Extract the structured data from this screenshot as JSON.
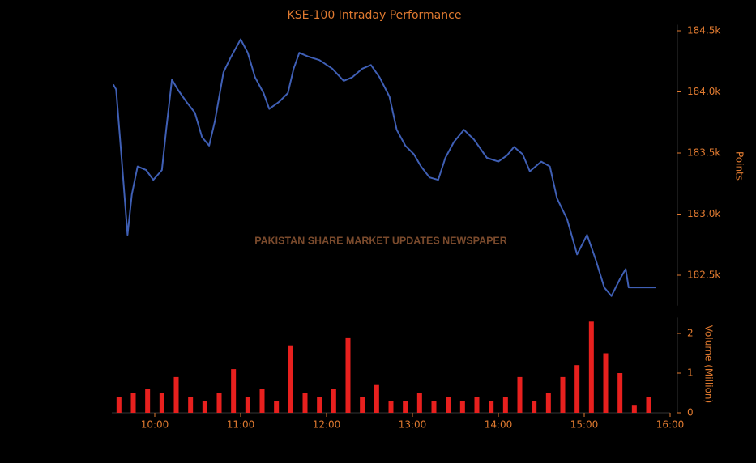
{
  "chart_data": [
    {
      "type": "line",
      "title": "KSE-100 Intraday Performance",
      "y_label": "Points",
      "annotation": "PAKISTAN SHARE MARKET UPDATES NEWSPAPER",
      "axis_side": "right",
      "xlim": [
        "09:30",
        "16:00"
      ],
      "ylim": [
        182250,
        184550
      ],
      "yticks": [
        {
          "value": 182500,
          "label": "182.5k"
        },
        {
          "value": 183000,
          "label": "183.0k"
        },
        {
          "value": 183500,
          "label": "183.5k"
        },
        {
          "value": 184000,
          "label": "184.0k"
        },
        {
          "value": 184500,
          "label": "184.5k"
        }
      ],
      "series": [
        {
          "name": "KSE-100",
          "color": "#3f5fb5",
          "x": [
            "09:31",
            "09:33",
            "09:37",
            "09:41",
            "09:44",
            "09:48",
            "09:54",
            "09:59",
            "10:05",
            "10:08",
            "10:12",
            "10:16",
            "10:22",
            "10:28",
            "10:33",
            "10:38",
            "10:42",
            "10:48",
            "10:53",
            "11:00",
            "11:05",
            "11:10",
            "11:16",
            "11:20",
            "11:27",
            "11:33",
            "11:37",
            "11:41",
            "11:47",
            "11:55",
            "12:04",
            "12:12",
            "12:18",
            "12:25",
            "12:31",
            "12:37",
            "12:44",
            "12:49",
            "12:55",
            "13:01",
            "13:06",
            "13:12",
            "13:18",
            "13:23",
            "13:29",
            "13:36",
            "13:43",
            "13:52",
            "14:00",
            "14:06",
            "14:11",
            "14:17",
            "14:22",
            "14:30",
            "14:36",
            "14:41",
            "14:48",
            "14:55",
            "15:02",
            "15:08",
            "15:14",
            "15:19",
            "15:25",
            "15:29",
            "15:31",
            "15:50"
          ],
          "values": [
            184060,
            184020,
            183430,
            182830,
            183160,
            183390,
            183360,
            183280,
            183360,
            183690,
            184100,
            184020,
            183920,
            183830,
            183630,
            183560,
            183760,
            184160,
            184280,
            184430,
            184320,
            184120,
            183990,
            183860,
            183920,
            183990,
            184190,
            184320,
            184290,
            184260,
            184190,
            184090,
            184120,
            184190,
            184220,
            184120,
            183960,
            183690,
            183560,
            183490,
            183390,
            183300,
            183280,
            183460,
            183590,
            183690,
            183610,
            183460,
            183430,
            183480,
            183550,
            183490,
            183350,
            183430,
            183390,
            183130,
            182960,
            182670,
            182830,
            182630,
            182400,
            182330,
            182470,
            182550,
            182400,
            182400
          ]
        }
      ]
    },
    {
      "type": "bar",
      "y_label": "Volume (Million)",
      "axis_side": "right",
      "xlim": [
        "09:30",
        "16:00"
      ],
      "xticks": [
        "10:00",
        "11:00",
        "12:00",
        "13:00",
        "14:00",
        "15:00",
        "16:00"
      ],
      "ylim": [
        0,
        2.4
      ],
      "yticks": [
        0,
        1,
        2
      ],
      "series": [
        {
          "name": "Volume",
          "color": "#e8201e",
          "x": [
            "09:35",
            "09:45",
            "09:55",
            "10:05",
            "10:15",
            "10:25",
            "10:35",
            "10:45",
            "10:55",
            "11:05",
            "11:15",
            "11:25",
            "11:35",
            "11:45",
            "11:55",
            "12:05",
            "12:15",
            "12:25",
            "12:35",
            "12:45",
            "12:55",
            "13:05",
            "13:15",
            "13:25",
            "13:35",
            "13:45",
            "13:55",
            "14:05",
            "14:15",
            "14:25",
            "14:35",
            "14:45",
            "14:55",
            "15:05",
            "15:15",
            "15:25",
            "15:35",
            "15:45"
          ],
          "values": [
            0.4,
            0.5,
            0.6,
            0.5,
            0.9,
            0.4,
            0.3,
            0.5,
            1.1,
            0.4,
            0.6,
            0.3,
            1.7,
            0.5,
            0.4,
            0.6,
            1.9,
            0.4,
            0.7,
            0.3,
            0.3,
            0.5,
            0.3,
            0.4,
            0.3,
            0.4,
            0.3,
            0.4,
            0.9,
            0.3,
            0.5,
            0.9,
            1.2,
            2.3,
            1.5,
            1.0,
            0.2,
            0.4
          ]
        }
      ]
    }
  ]
}
